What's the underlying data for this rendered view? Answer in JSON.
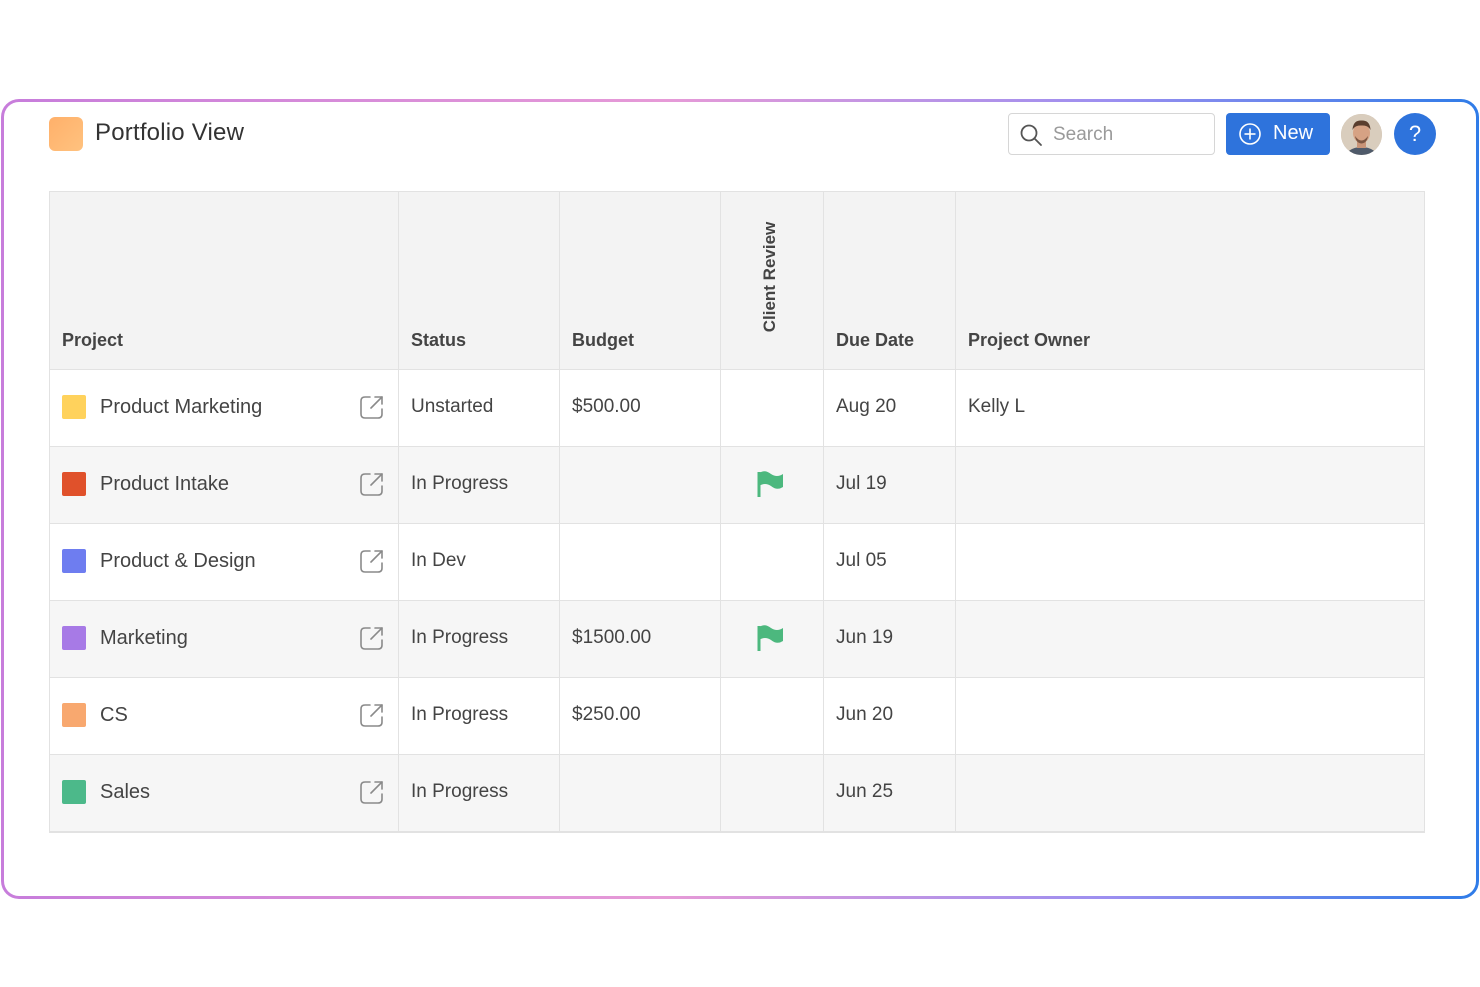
{
  "header": {
    "app_title": "Portfolio View",
    "search_placeholder": "Search",
    "new_button_label": "New",
    "help_label": "?"
  },
  "table": {
    "columns": {
      "project": "Project",
      "status": "Status",
      "budget": "Budget",
      "client_review": "Client Review",
      "due_date": "Due Date",
      "project_owner": "Project Owner"
    },
    "rows": [
      {
        "name": "Product Marketing",
        "color": "#ffd25c",
        "status": "Unstarted",
        "budget": "$500.00",
        "client_review": false,
        "due": "Aug 20",
        "owner": "Kelly L"
      },
      {
        "name": "Product Intake",
        "color": "#e0512b",
        "status": "In Progress",
        "budget": "",
        "client_review": true,
        "due": "Jul 19",
        "owner": ""
      },
      {
        "name": "Product & Design",
        "color": "#6e7df0",
        "status": "In Dev",
        "budget": "",
        "client_review": false,
        "due": "Jul 05",
        "owner": ""
      },
      {
        "name": "Marketing",
        "color": "#a77ae6",
        "status": "In Progress",
        "budget": "$1500.00",
        "client_review": true,
        "due": "Jun 19",
        "owner": ""
      },
      {
        "name": "CS",
        "color": "#f8a86f",
        "status": "In Progress",
        "budget": "$250.00",
        "client_review": false,
        "due": "Jun 20",
        "owner": ""
      },
      {
        "name": "Sales",
        "color": "#4cb98a",
        "status": "In Progress",
        "budget": "",
        "client_review": false,
        "due": "Jun 25",
        "owner": ""
      }
    ]
  },
  "icons": {
    "flag_color": "#4cb87e",
    "accent": "#2e73dc"
  }
}
